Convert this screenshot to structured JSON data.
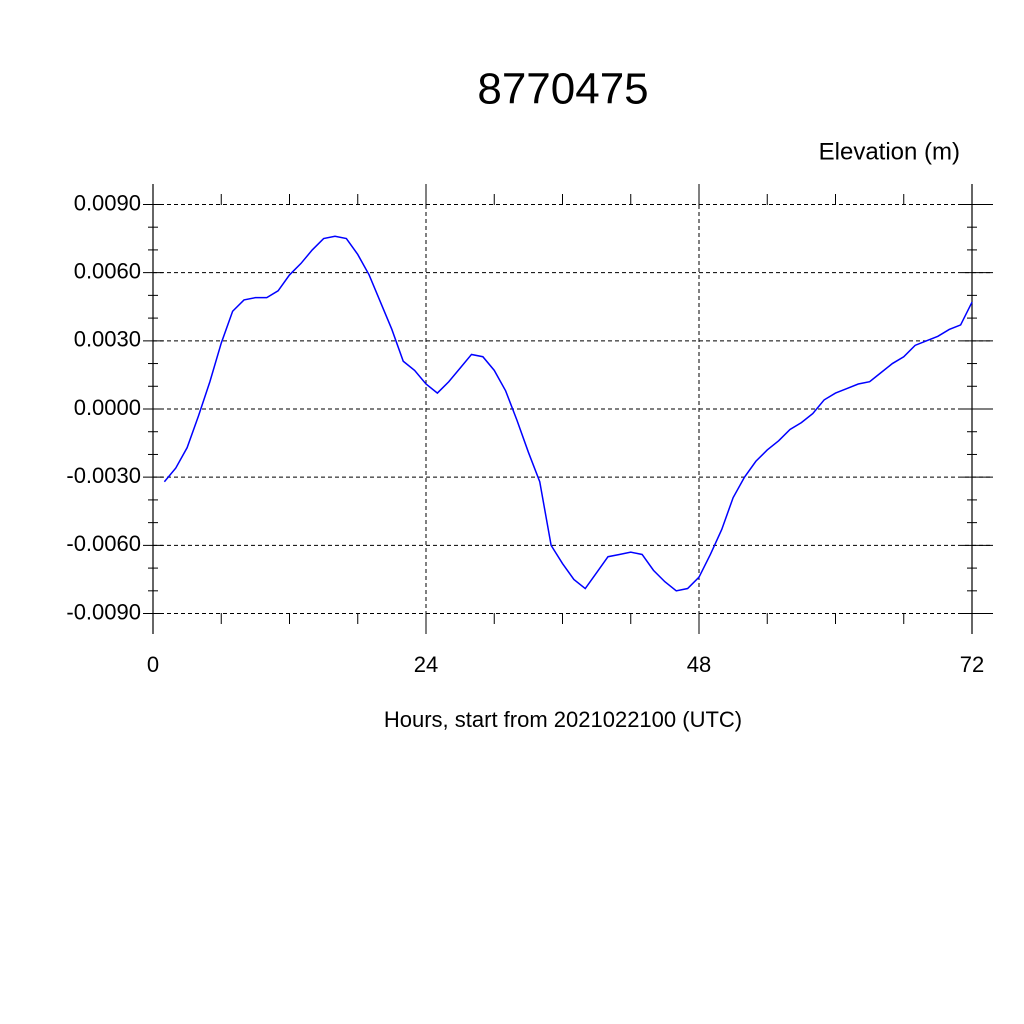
{
  "chart_data": {
    "type": "line",
    "title": "8770475",
    "subtitle": "Elevation (m)",
    "x_label": "Hours, start from 2021022100 (UTC)",
    "x": [
      1,
      2,
      3,
      4,
      5,
      6,
      7,
      8,
      9,
      10,
      11,
      12,
      13,
      14,
      15,
      16,
      17,
      18,
      19,
      20,
      21,
      22,
      23,
      24,
      25,
      26,
      27,
      28,
      29,
      30,
      31,
      32,
      33,
      34,
      35,
      36,
      37,
      38,
      39,
      40,
      41,
      42,
      43,
      44,
      45,
      46,
      47,
      48,
      49,
      50,
      51,
      52,
      53,
      54,
      55,
      56,
      57,
      58,
      59,
      60,
      61,
      62,
      63,
      64,
      65,
      66,
      67,
      68,
      69,
      70,
      71,
      72
    ],
    "series": [
      {
        "name": "Elevation",
        "color": "#0000ff",
        "values": [
          -0.0032,
          -0.0026,
          -0.0017,
          -0.0003,
          0.0012,
          0.0029,
          0.0043,
          0.0048,
          0.0049,
          0.0049,
          0.0052,
          0.0059,
          0.0064,
          0.007,
          0.0075,
          0.0076,
          0.0075,
          0.0068,
          0.0059,
          0.0047,
          0.0035,
          0.0021,
          0.0017,
          0.0011,
          0.0007,
          0.0012,
          0.0018,
          0.0024,
          0.0023,
          0.0017,
          0.0008,
          -0.0005,
          -0.0019,
          -0.0032,
          -0.006,
          -0.0068,
          -0.0075,
          -0.0079,
          -0.0072,
          -0.0065,
          -0.0064,
          -0.0063,
          -0.0064,
          -0.0071,
          -0.0076,
          -0.008,
          -0.0079,
          -0.0074,
          -0.0064,
          -0.0053,
          -0.0039,
          -0.003,
          -0.0023,
          -0.0018,
          -0.0014,
          -0.0009,
          -0.0006,
          -0.0002,
          0.0004,
          0.0007,
          0.0009,
          0.0011,
          0.0012,
          0.0016,
          0.002,
          0.0023,
          0.0028,
          0.003,
          0.0032,
          0.0035,
          0.0037,
          0.0047
        ]
      }
    ],
    "xlim": [
      0,
      72
    ],
    "xticks": [
      0,
      24,
      48,
      72
    ],
    "xminorticks": [
      6,
      12,
      18,
      30,
      36,
      42,
      54,
      60,
      66
    ],
    "ylim": [
      -0.0099,
      0.0099
    ],
    "yticks": [
      {
        "value": -0.009,
        "label": "-0.0090"
      },
      {
        "value": -0.006,
        "label": "-0.0060"
      },
      {
        "value": -0.003,
        "label": "-0.0030"
      },
      {
        "value": 0,
        "label": "0.0000"
      },
      {
        "value": 0.003,
        "label": "0.0030"
      },
      {
        "value": 0.006,
        "label": "0.0060"
      },
      {
        "value": 0.009,
        "label": "0.0090"
      }
    ],
    "yminorticks": [
      -0.008,
      -0.007,
      -0.005,
      -0.004,
      -0.002,
      -0.001,
      0.001,
      0.002,
      0.004,
      0.005,
      0.007,
      0.008
    ],
    "grid": true
  }
}
